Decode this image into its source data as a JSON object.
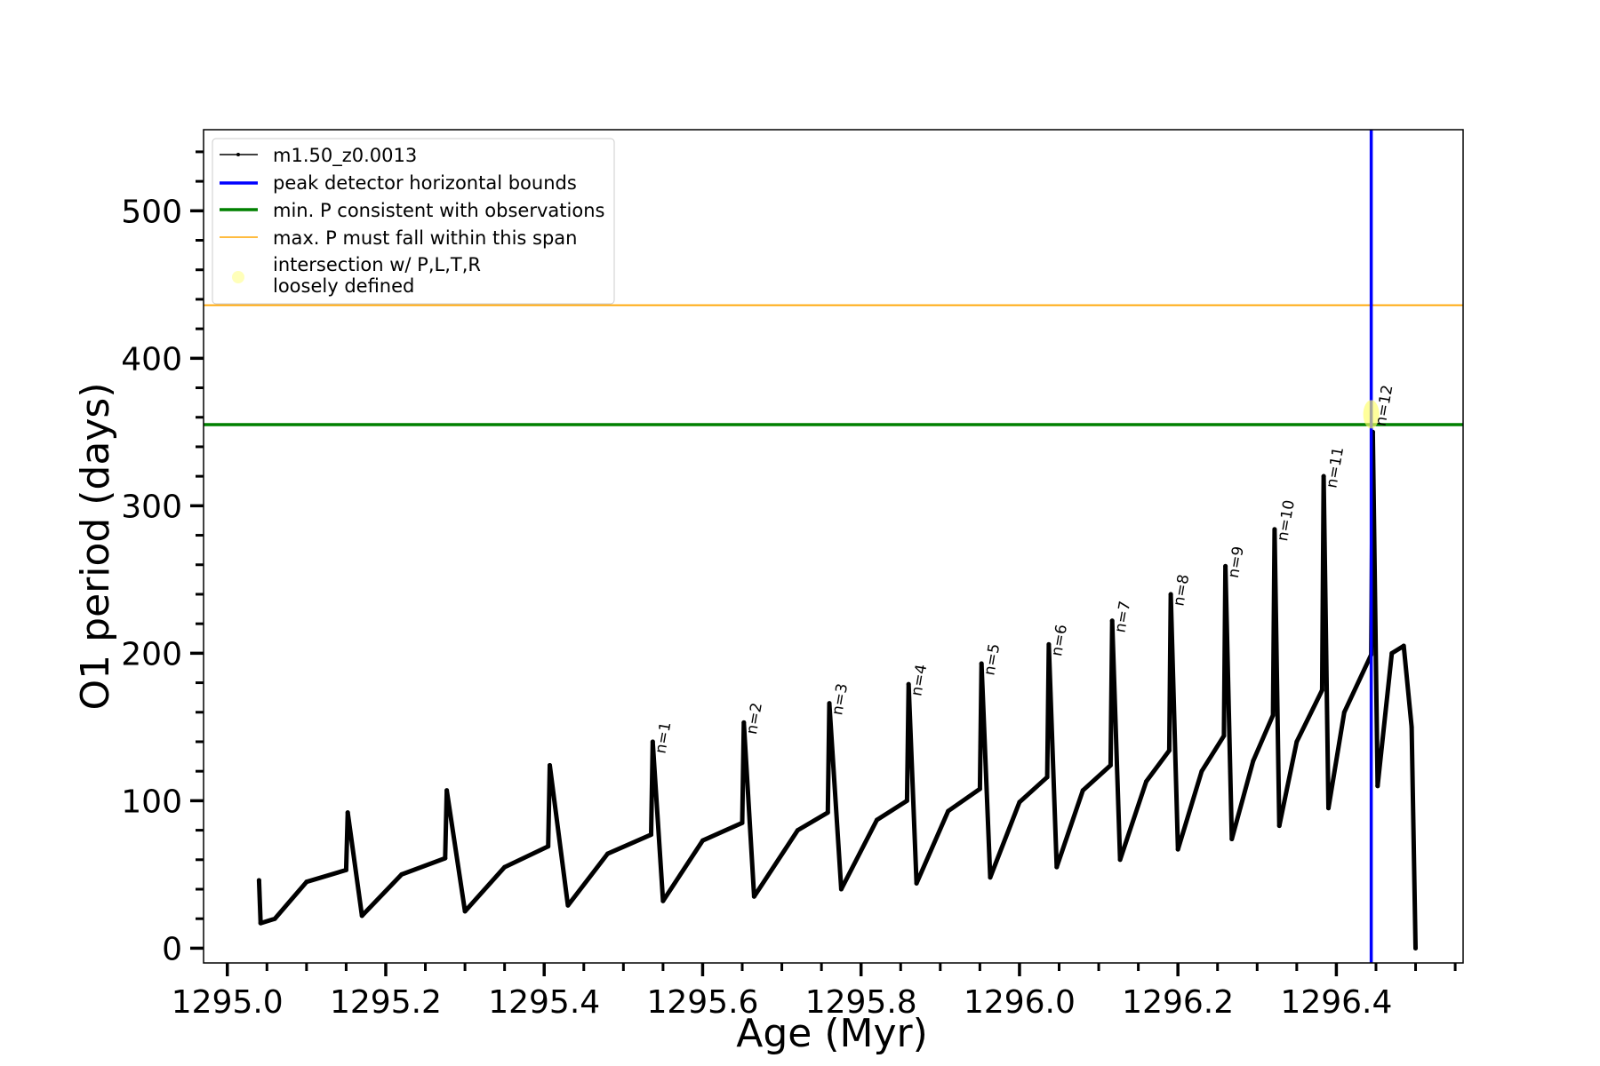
{
  "chart_data": {
    "type": "line",
    "xlabel": "Age (Myr)",
    "ylabel": "O1 period (days)",
    "xlim": [
      1294.97,
      1296.56
    ],
    "ylim": [
      -10,
      555
    ],
    "x_ticks": [
      {
        "value": 1295.0,
        "label": "1295.0"
      },
      {
        "value": 1295.2,
        "label": "1295.2"
      },
      {
        "value": 1295.4,
        "label": "1295.4"
      },
      {
        "value": 1295.6,
        "label": "1295.6"
      },
      {
        "value": 1295.8,
        "label": "1295.8"
      },
      {
        "value": 1296.0,
        "label": "1296.0"
      },
      {
        "value": 1296.2,
        "label": "1296.2"
      },
      {
        "value": 1296.4,
        "label": "1296.4"
      }
    ],
    "y_ticks": [
      {
        "value": 0,
        "label": "0"
      },
      {
        "value": 100,
        "label": "100"
      },
      {
        "value": 200,
        "label": "200"
      },
      {
        "value": 300,
        "label": "300"
      },
      {
        "value": 400,
        "label": "400"
      },
      {
        "value": 500,
        "label": "500"
      }
    ],
    "legend": {
      "position": "upper-left",
      "entries": [
        {
          "label": "m1.50_z0.0013",
          "style": "line-marker",
          "color": "#000000"
        },
        {
          "label": "peak detector horizontal bounds",
          "style": "line",
          "color": "#0000ff"
        },
        {
          "label": "min. P consistent with observations",
          "style": "line",
          "color": "#008000"
        },
        {
          "label": "max. P must fall within this span",
          "style": "line",
          "color": "#ffa500"
        },
        {
          "label": "intersection w/ P,L,T,R",
          "label2": "loosely defined",
          "style": "marker",
          "color": "#ffff66"
        }
      ]
    },
    "series": [
      {
        "name": "m1.50_z0.0013",
        "color": "#000000",
        "x": [
          1295.04,
          1295.042,
          1295.06,
          1295.1,
          1295.15,
          1295.152,
          1295.17,
          1295.22,
          1295.275,
          1295.277,
          1295.3,
          1295.35,
          1295.405,
          1295.407,
          1295.43,
          1295.48,
          1295.535,
          1295.537,
          1295.55,
          1295.6,
          1295.65,
          1295.652,
          1295.665,
          1295.72,
          1295.758,
          1295.76,
          1295.775,
          1295.82,
          1295.858,
          1295.86,
          1295.87,
          1295.91,
          1295.95,
          1295.952,
          1295.963,
          1296.0,
          1296.035,
          1296.037,
          1296.047,
          1296.08,
          1296.115,
          1296.117,
          1296.127,
          1296.16,
          1296.189,
          1296.191,
          1296.2,
          1296.23,
          1296.258,
          1296.26,
          1296.268,
          1296.295,
          1296.32,
          1296.322,
          1296.328,
          1296.35,
          1296.382,
          1296.384,
          1296.39,
          1296.41,
          1296.444,
          1296.446,
          1296.452,
          1296.47,
          1296.485,
          1296.495,
          1296.5
        ],
        "y": [
          46,
          17,
          20,
          45,
          53,
          92,
          22,
          50,
          61,
          107,
          25,
          55,
          69,
          124,
          29,
          64,
          77,
          140,
          32,
          73,
          85,
          153,
          35,
          80,
          92,
          166,
          40,
          87,
          100,
          179,
          44,
          93,
          108,
          193,
          48,
          99,
          116,
          206,
          55,
          107,
          124,
          222,
          60,
          113,
          134,
          240,
          67,
          120,
          144,
          259,
          74,
          127,
          158,
          284,
          83,
          140,
          175,
          320,
          95,
          160,
          199,
          350,
          110,
          200,
          205,
          150,
          0
        ]
      },
      {
        "name": "peak detector horizontal bounds",
        "type": "vline",
        "x": 1296.444,
        "color": "#0000ff"
      },
      {
        "name": "min. P consistent with observations",
        "type": "hline",
        "y": 355,
        "color": "#008000"
      },
      {
        "name": "max. P must fall within this span",
        "type": "hline",
        "y": 436,
        "color": "#ffa500"
      },
      {
        "name": "intersection w/ P,L,T,R",
        "type": "marker",
        "x": 1296.444,
        "y": 362,
        "color": "#ffff66"
      }
    ],
    "annotations": [
      {
        "text": "n=1",
        "x": 1295.537,
        "y": 140
      },
      {
        "text": "n=2",
        "x": 1295.652,
        "y": 153
      },
      {
        "text": "n=3",
        "x": 1295.76,
        "y": 166
      },
      {
        "text": "n=4",
        "x": 1295.86,
        "y": 179
      },
      {
        "text": "n=5",
        "x": 1295.952,
        "y": 193
      },
      {
        "text": "n=6",
        "x": 1296.037,
        "y": 206
      },
      {
        "text": "n=7",
        "x": 1296.117,
        "y": 222
      },
      {
        "text": "n=8",
        "x": 1296.191,
        "y": 240
      },
      {
        "text": "n=9",
        "x": 1296.26,
        "y": 259
      },
      {
        "text": "n=10",
        "x": 1296.322,
        "y": 284
      },
      {
        "text": "n=11",
        "x": 1296.384,
        "y": 320
      },
      {
        "text": "n=12",
        "x": 1296.446,
        "y": 362
      }
    ],
    "grid": false
  }
}
